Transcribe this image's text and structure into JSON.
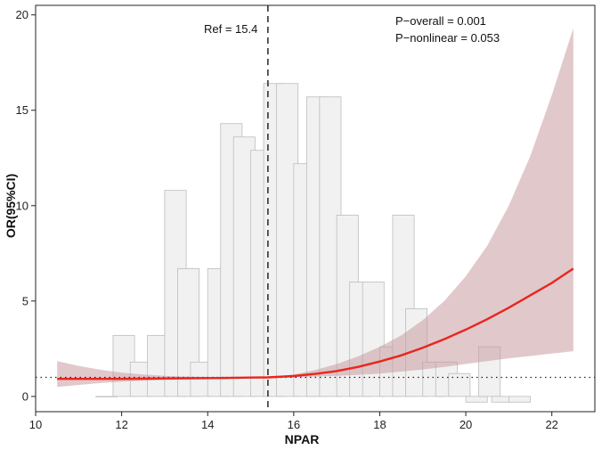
{
  "chart_data": {
    "type": "line",
    "xlabel": "NPAR",
    "ylabel": "OR(95%CI)",
    "xlim": [
      10,
      23
    ],
    "ylim": [
      -0.8,
      20.5
    ],
    "x_ticks": [
      10,
      12,
      14,
      16,
      18,
      20,
      22
    ],
    "y_ticks": [
      0,
      5,
      10,
      15,
      20
    ],
    "reference_line": {
      "x": 15.4,
      "label": "Ref = 15.4"
    },
    "null_line": {
      "y": 1
    },
    "annotations": [
      "P−overall = 0.001",
      "P−nonlinear = 0.053"
    ],
    "histogram": {
      "bin_width": 0.5,
      "bin_start": [
        11.4,
        11.8,
        12.2,
        12.6,
        13.0,
        13.3,
        13.6,
        14.0,
        14.3,
        14.6,
        15.0,
        15.3,
        15.6,
        16.0,
        16.3,
        16.6,
        17.0,
        17.3,
        17.6,
        18.0,
        18.3,
        18.6,
        19.0,
        19.3,
        19.6,
        20.0,
        20.3,
        20.6,
        21.0
      ],
      "heights": [
        0.0,
        3.2,
        1.8,
        3.2,
        10.8,
        6.7,
        1.8,
        6.7,
        14.3,
        13.6,
        12.9,
        16.4,
        16.4,
        12.2,
        15.7,
        15.7,
        9.5,
        6.0,
        6.0,
        2.6,
        9.5,
        4.6,
        1.8,
        1.8,
        1.2,
        -0.3,
        2.6,
        -0.3,
        -0.3
      ]
    },
    "series": [
      {
        "x": [
          10.5,
          11.0,
          11.5,
          12.0,
          12.5,
          13.0,
          13.5,
          14.0,
          14.5,
          15.0,
          15.4,
          16.0,
          16.5,
          17.0,
          17.5,
          18.0,
          18.5,
          19.0,
          19.5,
          20.0,
          20.5,
          21.0,
          21.5,
          22.0,
          22.5
        ],
        "y": [
          0.92,
          0.92,
          0.92,
          0.92,
          0.93,
          0.94,
          0.95,
          0.96,
          0.97,
          0.99,
          1.0,
          1.07,
          1.18,
          1.33,
          1.55,
          1.83,
          2.15,
          2.55,
          3.0,
          3.5,
          4.05,
          4.65,
          5.3,
          5.95,
          6.7
        ],
        "lower": [
          0.5,
          0.6,
          0.7,
          0.77,
          0.82,
          0.86,
          0.9,
          0.93,
          0.96,
          0.98,
          1.0,
          1.01,
          1.04,
          1.08,
          1.13,
          1.2,
          1.3,
          1.41,
          1.55,
          1.7,
          1.85,
          2.0,
          2.12,
          2.25,
          2.37
        ],
        "upper": [
          1.85,
          1.6,
          1.4,
          1.25,
          1.15,
          1.08,
          1.04,
          1.02,
          1.01,
          1.0,
          1.0,
          1.15,
          1.38,
          1.7,
          2.1,
          2.6,
          3.2,
          4.0,
          5.0,
          6.3,
          7.9,
          10.0,
          12.6,
          15.8,
          19.3
        ]
      }
    ],
    "colors": {
      "line": "#e8261e",
      "band": "#c99aa0",
      "bar_fill": "#f1f1f1",
      "bar_stroke": "#bdbdbd"
    }
  }
}
